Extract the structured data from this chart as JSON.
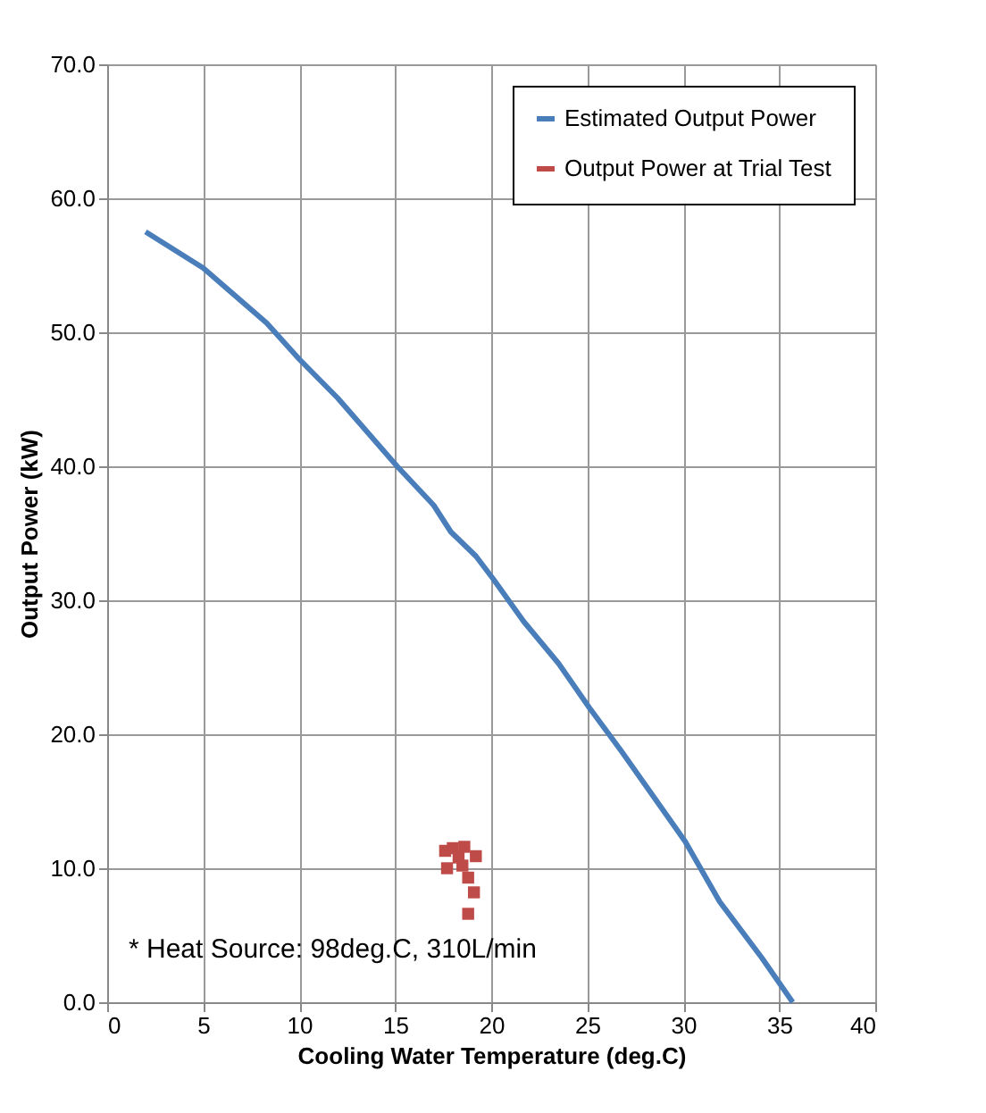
{
  "chart_data": {
    "type": "line",
    "xlabel": "Cooling Water Temperature (deg.C)",
    "ylabel": "Output Power (kW)",
    "xlim": [
      0,
      40
    ],
    "xticks": [
      0,
      5,
      10,
      15,
      20,
      25,
      30,
      35,
      40
    ],
    "ylim": [
      0,
      70
    ],
    "yticks": [
      {
        "value": 0,
        "label": "0.0"
      },
      {
        "value": 10,
        "label": "10.0"
      },
      {
        "value": 20,
        "label": "20.0"
      },
      {
        "value": 30,
        "label": "30.0"
      },
      {
        "value": 40,
        "label": "40.0"
      },
      {
        "value": 50,
        "label": "50.0"
      },
      {
        "value": 60,
        "label": "60.0"
      },
      {
        "value": 70,
        "label": "70.0"
      }
    ],
    "grid": true,
    "legend": "top right",
    "annotations": [
      "* Heat Source: 98deg.C, 310L/min"
    ],
    "series": [
      {
        "name": "Estimated Output Power",
        "color": "#4a7ebb",
        "marker": "none",
        "line_style": "solid",
        "x": [
          2.0,
          5.0,
          8.3,
          10.0,
          12.0,
          15.1,
          17.0,
          17.9,
          19.2,
          20.1,
          21.7,
          23.5,
          25.1,
          26.8,
          30.1,
          31.9,
          34.1,
          35.7
        ],
        "values": [
          57.5,
          54.8,
          50.7,
          48.0,
          45.1,
          40.0,
          37.1,
          35.1,
          33.3,
          31.6,
          28.4,
          25.3,
          22.0,
          18.7,
          12.0,
          7.5,
          3.3,
          0.0
        ]
      },
      {
        "name": "Output Power at Trial Test",
        "type": "scatter",
        "color": "#be4b48",
        "marker": "square",
        "x": [
          17.6,
          18.0,
          18.3,
          18.6,
          19.2,
          17.7,
          18.5,
          19.1,
          18.8,
          18.8
        ],
        "values": [
          11.3,
          11.5,
          10.8,
          11.6,
          10.9,
          10.0,
          10.2,
          8.2,
          6.6,
          9.3
        ]
      }
    ]
  }
}
